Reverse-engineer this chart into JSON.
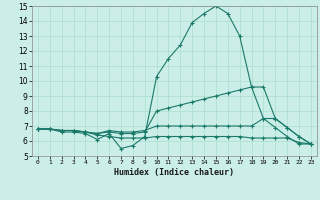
{
  "title": "",
  "xlabel": "Humidex (Indice chaleur)",
  "ylabel": "",
  "bg_color": "#cceee8",
  "grid_color": "#aaddcc",
  "line_color": "#1a7a6a",
  "xlim": [
    -0.5,
    23.5
  ],
  "ylim": [
    5,
    15
  ],
  "xticks": [
    0,
    1,
    2,
    3,
    4,
    5,
    6,
    7,
    8,
    9,
    10,
    11,
    12,
    13,
    14,
    15,
    16,
    17,
    18,
    19,
    20,
    21,
    22,
    23
  ],
  "yticks": [
    5,
    6,
    7,
    8,
    9,
    10,
    11,
    12,
    13,
    14,
    15
  ],
  "series": [
    {
      "x": [
        0,
        1,
        2,
        3,
        4,
        5,
        6,
        7,
        8,
        9,
        10,
        11,
        12,
        13,
        14,
        15,
        16,
        17,
        18,
        19,
        20,
        21,
        22,
        23
      ],
      "y": [
        6.8,
        6.8,
        6.6,
        6.6,
        6.5,
        6.1,
        6.5,
        5.5,
        5.7,
        6.3,
        10.3,
        11.5,
        12.4,
        13.9,
        14.5,
        15.0,
        14.5,
        13.0,
        9.6,
        7.5,
        6.9,
        6.3,
        5.8,
        5.8
      ]
    },
    {
      "x": [
        0,
        1,
        2,
        3,
        4,
        5,
        6,
        7,
        8,
        9,
        10,
        11,
        12,
        13,
        14,
        15,
        16,
        17,
        18,
        19,
        20,
        21,
        22,
        23
      ],
      "y": [
        6.8,
        6.8,
        6.7,
        6.7,
        6.6,
        6.5,
        6.6,
        6.5,
        6.5,
        6.6,
        8.0,
        8.2,
        8.4,
        8.6,
        8.8,
        9.0,
        9.2,
        9.4,
        9.6,
        9.6,
        7.5,
        6.9,
        6.3,
        5.8
      ]
    },
    {
      "x": [
        0,
        1,
        2,
        3,
        4,
        5,
        6,
        7,
        8,
        9,
        10,
        11,
        12,
        13,
        14,
        15,
        16,
        17,
        18,
        19,
        20,
        21,
        22,
        23
      ],
      "y": [
        6.8,
        6.8,
        6.7,
        6.7,
        6.6,
        6.5,
        6.7,
        6.6,
        6.6,
        6.7,
        7.0,
        7.0,
        7.0,
        7.0,
        7.0,
        7.0,
        7.0,
        7.0,
        7.0,
        7.5,
        7.5,
        6.9,
        6.3,
        5.8
      ]
    },
    {
      "x": [
        0,
        1,
        2,
        3,
        4,
        5,
        6,
        7,
        8,
        9,
        10,
        11,
        12,
        13,
        14,
        15,
        16,
        17,
        18,
        19,
        20,
        21,
        22,
        23
      ],
      "y": [
        6.8,
        6.8,
        6.7,
        6.7,
        6.6,
        6.4,
        6.3,
        6.2,
        6.2,
        6.2,
        6.3,
        6.3,
        6.3,
        6.3,
        6.3,
        6.3,
        6.3,
        6.3,
        6.2,
        6.2,
        6.2,
        6.2,
        5.9,
        5.8
      ]
    }
  ]
}
